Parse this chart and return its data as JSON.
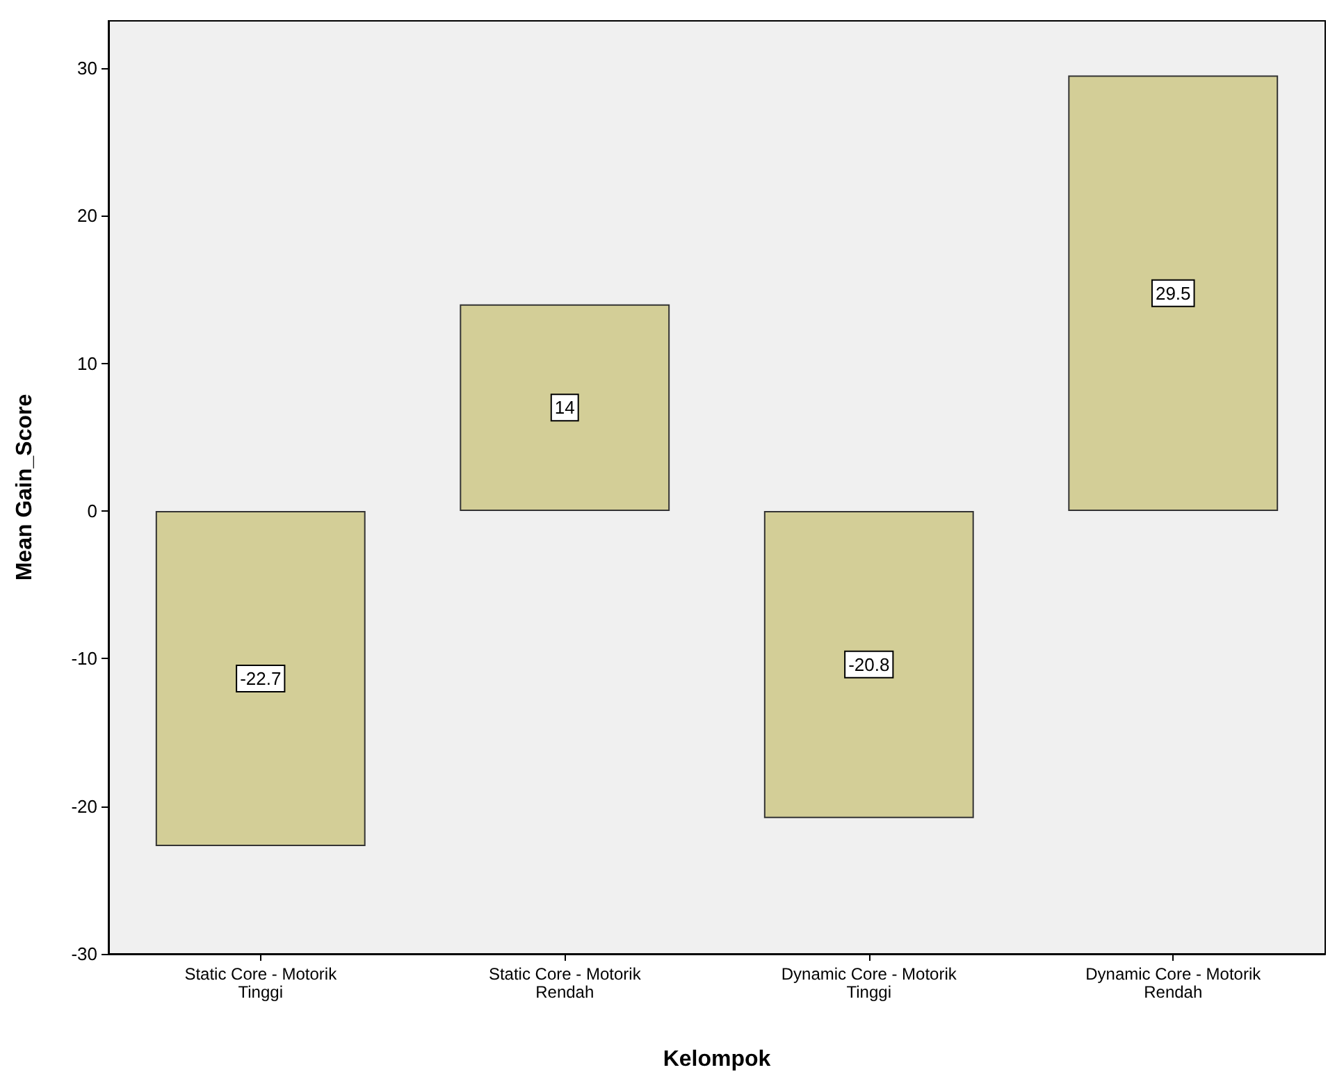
{
  "chart_data": {
    "type": "bar",
    "xlabel": "Kelompok",
    "ylabel": "Mean Gain_Score",
    "categories": [
      "Static Core - Motorik Tinggi",
      "Static Core - Motorik Rendah",
      "Dynamic Core - Motorik Tinggi",
      "Dynamic Core - Motorik Rendah"
    ],
    "values": [
      -22.7,
      14,
      -20.8,
      29.5
    ],
    "color": "#d3ce97",
    "ylim": [
      -30,
      33.2
    ],
    "yticks": [
      -30,
      -20,
      -10,
      0,
      10,
      20,
      30
    ],
    "grid": false,
    "data_labels": true
  }
}
